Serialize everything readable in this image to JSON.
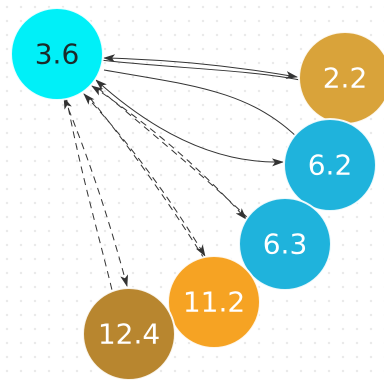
{
  "nodes": [
    {
      "id": "n36",
      "label": "3.6",
      "fill": "#00f0f8",
      "text_color": "#1b2a2a"
    },
    {
      "id": "n22",
      "label": "2.2",
      "fill": "#d9a33a",
      "text_color": "#ffffff"
    },
    {
      "id": "n62",
      "label": "6.2",
      "fill": "#1fb3dc",
      "text_color": "#ffffff"
    },
    {
      "id": "n63",
      "label": "6.3",
      "fill": "#1fb3dc",
      "text_color": "#ffffff"
    },
    {
      "id": "n112",
      "label": "11.2",
      "fill": "#f6a323",
      "text_color": "#ffffff"
    },
    {
      "id": "n124",
      "label": "12.4",
      "fill": "#b8862f",
      "text_color": "#ffffff"
    }
  ],
  "edges": [
    {
      "from": "n36",
      "to": "n22",
      "style": "solid",
      "arrows": "both"
    },
    {
      "from": "n36",
      "to": "n62",
      "style": "solid",
      "arrows": "both"
    },
    {
      "from": "n36",
      "to": "n63",
      "style": "dashed",
      "arrows": "both"
    },
    {
      "from": "n36",
      "to": "n112",
      "style": "dashed",
      "arrows": "both"
    },
    {
      "from": "n36",
      "to": "n124",
      "style": "dashed",
      "arrows": "both"
    }
  ]
}
